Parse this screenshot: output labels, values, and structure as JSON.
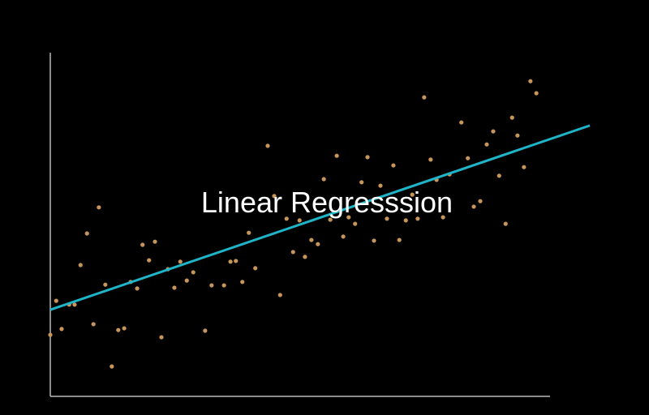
{
  "chart_data": {
    "type": "scatter",
    "title": "Linear Regresssion",
    "x": [
      0,
      1.1,
      2.1,
      3.5,
      4.5,
      5.6,
      6.8,
      8.0,
      9.0,
      10.2,
      11.4,
      12.6,
      13.7,
      14.9,
      16.1,
      17.1,
      18.3,
      19.4,
      20.6,
      21.8,
      23.0,
      24.1,
      25.3,
      26.5,
      28.7,
      29.9,
      32.2,
      33.4,
      34.4,
      35.6,
      36.8,
      38.0,
      40.3,
      41.5,
      42.6,
      43.8,
      45.0,
      46.2,
      47.2,
      48.4,
      49.6,
      50.7,
      51.9,
      53.1,
      54.3,
      55.3,
      56.5,
      57.7,
      58.8,
      60.0,
      61.2,
      62.4,
      63.6,
      64.7,
      65.9,
      67.1,
      68.1,
      69.3,
      70.5,
      71.6,
      72.8,
      74.0,
      76.2,
      77.4,
      78.5,
      79.7,
      80.9,
      82.1,
      83.2,
      84.4,
      85.6,
      86.6,
      87.8,
      89.0,
      90.1
    ],
    "values": [
      17.9,
      27.8,
      19.6,
      26.7,
      26.7,
      38.2,
      47.4,
      21.0,
      55.0,
      32.5,
      8.7,
      19.3,
      19.8,
      33.3,
      31.4,
      44.1,
      39.6,
      45.0,
      17.2,
      37.0,
      31.6,
      39.2,
      33.7,
      36.1,
      19.1,
      32.3,
      32.3,
      39.2,
      39.4,
      33.3,
      47.6,
      37.3,
      72.9,
      58.3,
      29.5,
      51.7,
      42.0,
      51.2,
      40.6,
      45.5,
      44.3,
      63.2,
      51.4,
      70.0,
      46.5,
      52.1,
      50.2,
      62.3,
      69.6,
      45.3,
      61.3,
      51.7,
      67.2,
      45.5,
      51.2,
      58.7,
      51.7,
      87.0,
      68.9,
      63.0,
      52.1,
      64.6,
      79.7,
      69.3,
      55.2,
      56.8,
      73.3,
      77.1,
      64.2,
      50.2,
      81.1,
      75.9,
      66.7,
      91.7,
      88.2
    ],
    "color": "#c8955a",
    "trend": {
      "x": [
        0,
        100
      ],
      "values": [
        25.2,
        78.8
      ],
      "color": "#1fb5c9"
    },
    "xlim": [
      0,
      100
    ],
    "ylim": [
      0,
      100
    ]
  }
}
